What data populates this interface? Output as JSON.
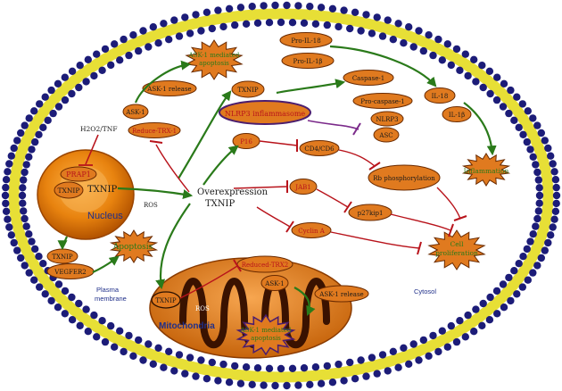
{
  "nucleus": {
    "title": "Nucleus",
    "prap1": "PRAP1",
    "txnip": "TXNIP",
    "txnip_main": "TXNIP",
    "ros": "ROS"
  },
  "center": {
    "line1": "Overexpression",
    "line2": "TXNIP"
  },
  "stimulus": "H2O2/TNF",
  "ask_branch": {
    "ask1": "ASK-1",
    "ask1_release": "ASK-1 release",
    "reduce_trx1": "Reduce-TRX-1",
    "apoptosis_star_1": "ASK-1 mediated",
    "apoptosis_star_2": "apoptosis"
  },
  "inflammasome": {
    "txnip": "TXNIP",
    "nlrp3_inflammasome": "NLRP3 inflammasome",
    "pro_il18": "Pro-IL-18",
    "pro_il1b": "Pro-IL-1β",
    "caspase1": "Caspase-1",
    "pro_caspase1": "Pro-caspase-1",
    "nlrp3": "NLRP3",
    "asc": "ASC",
    "il18": "IL-18",
    "il1b": "IL-1β",
    "inflammation": "Inflammation"
  },
  "cell_cycle": {
    "p16": "P16",
    "cd4cd6": "CD4/CD6",
    "rb": "Rb phosphorylation",
    "jab1": "JAB1",
    "p27kip1": "p27kip1",
    "cyclin_a": "Cyclin A",
    "prolif_1": "Cell",
    "prolif_2": "proliferation"
  },
  "membrane": {
    "txnip": "TXNIP",
    "vegfr2": "VEGFER2",
    "apoptosis": "Apoptosis",
    "plasma_1": "Plasma",
    "plasma_2": "membrane",
    "cytosol": "Cytosol"
  },
  "mito": {
    "title": "Mitochondria",
    "txnip": "TXNIP",
    "ros": "ROS",
    "reduced_trx2": "Reduced-TRX2",
    "ask1": "ASK-1",
    "ask1_release": "ASK-1 release",
    "star_1": "ASK-1 mediated",
    "star_2": "apoptosis"
  },
  "colors": {
    "node_fill": "#e07a1f",
    "node_stroke": "#6a2a00",
    "arrow_green": "#2a7a1a",
    "inhibit_red": "#b8131b",
    "inhibit_purple": "#7b2a8a",
    "membrane_blue": "#1c1c78",
    "membrane_yellow": "#e7df36"
  }
}
